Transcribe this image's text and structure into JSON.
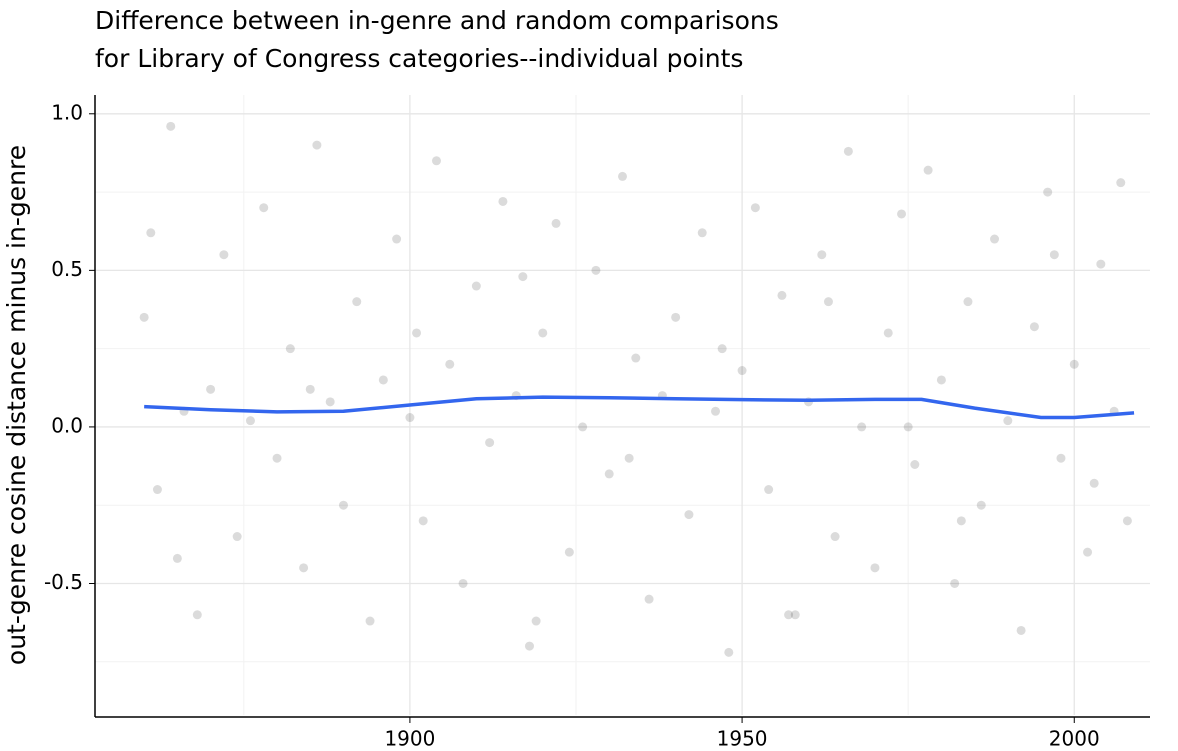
{
  "chart_data": {
    "type": "scatter",
    "title": [
      "Difference between in-genre and random comparisons",
      "for Library of Congress categories--individual points"
    ],
    "y_label": "out-genre cosine distance minus in-genre",
    "xlim": [
      1852.6,
      2011.4
    ],
    "ylim": [
      -0.92,
      1.06
    ],
    "xticks": [
      1900,
      1950,
      2000
    ],
    "yticks": [
      {
        "value": 1.0,
        "label": "1.0"
      },
      0.5,
      {
        "value": 0.0,
        "label": "0.0"
      },
      -0.5
    ],
    "minor_xticks": [
      1875,
      1925,
      1975
    ],
    "minor_yticks": [
      0.75,
      0.25,
      -0.25,
      -0.75
    ],
    "grid": true,
    "series": [
      {
        "type": "scatter",
        "color": "#000000",
        "x": [
          1860,
          1862,
          1864,
          1866,
          1868,
          1870,
          1872,
          1874,
          1876,
          1878,
          1880,
          1882,
          1884,
          1886,
          1888,
          1890,
          1892,
          1894,
          1896,
          1898,
          1900,
          1902,
          1904,
          1906,
          1908,
          1910,
          1912,
          1914,
          1916,
          1918,
          1920,
          1922,
          1924,
          1926,
          1928,
          1930,
          1932,
          1934,
          1936,
          1938,
          1940,
          1942,
          1944,
          1946,
          1948,
          1950,
          1952,
          1954,
          1956,
          1958,
          1960,
          1962,
          1964,
          1966,
          1968,
          1970,
          1972,
          1974,
          1976,
          1978,
          1980,
          1982,
          1984,
          1986,
          1988,
          1990,
          1992,
          1994,
          1996,
          1998,
          2000,
          2002,
          2004,
          2006,
          2008,
          1861,
          1865,
          1885,
          1901,
          1917,
          1919,
          1933,
          1947,
          1957,
          1963,
          1975,
          1983,
          1997,
          2003,
          2007
        ],
        "values": [
          0.35,
          -0.2,
          0.96,
          0.05,
          -0.6,
          0.12,
          0.55,
          -0.35,
          0.02,
          0.7,
          -0.1,
          0.25,
          -0.45,
          0.9,
          0.08,
          -0.25,
          0.4,
          -0.62,
          0.15,
          0.6,
          0.03,
          -0.3,
          0.85,
          0.2,
          -0.5,
          0.45,
          -0.05,
          0.72,
          0.1,
          -0.7,
          0.3,
          0.65,
          -0.4,
          0.0,
          0.5,
          -0.15,
          0.8,
          0.22,
          -0.55,
          0.1,
          0.35,
          -0.28,
          0.62,
          0.05,
          -0.72,
          0.18,
          0.7,
          -0.2,
          0.42,
          -0.6,
          0.08,
          0.55,
          -0.35,
          0.88,
          0.0,
          -0.45,
          0.3,
          0.68,
          -0.12,
          0.82,
          0.15,
          -0.5,
          0.4,
          -0.25,
          0.6,
          0.02,
          -0.65,
          0.32,
          0.75,
          -0.1,
          0.2,
          -0.4,
          0.52,
          0.05,
          -0.3,
          0.62,
          -0.42,
          0.12,
          0.3,
          0.48,
          -0.62,
          -0.1,
          0.25,
          -0.6,
          0.4,
          0.0,
          -0.3,
          0.55,
          -0.18,
          0.78
        ]
      },
      {
        "type": "line",
        "color": "#3366ee",
        "x": [
          1860,
          1870,
          1880,
          1890,
          1900,
          1910,
          1920,
          1930,
          1940,
          1950,
          1960,
          1970,
          1977,
          1985,
          1995,
          2000,
          2009
        ],
        "values": [
          0.065,
          0.055,
          0.048,
          0.05,
          0.07,
          0.09,
          0.095,
          0.093,
          0.09,
          0.087,
          0.085,
          0.088,
          0.088,
          0.06,
          0.03,
          0.03,
          0.045
        ]
      }
    ]
  }
}
